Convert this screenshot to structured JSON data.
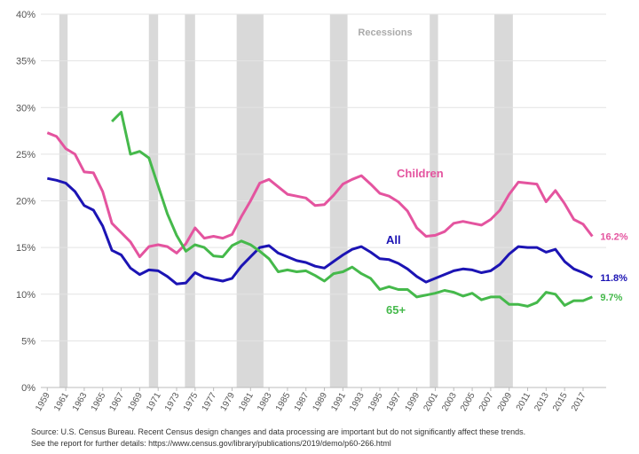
{
  "chart_data": {
    "type": "line",
    "x": [
      1959,
      1960,
      1961,
      1962,
      1963,
      1964,
      1965,
      1966,
      1967,
      1968,
      1969,
      1970,
      1971,
      1972,
      1973,
      1974,
      1975,
      1976,
      1977,
      1978,
      1979,
      1980,
      1981,
      1982,
      1983,
      1984,
      1985,
      1986,
      1987,
      1988,
      1989,
      1990,
      1991,
      1992,
      1993,
      1994,
      1995,
      1996,
      1997,
      1998,
      1999,
      2000,
      2001,
      2002,
      2003,
      2004,
      2005,
      2006,
      2007,
      2008,
      2009,
      2010,
      2011,
      2012,
      2013,
      2014,
      2015,
      2016,
      2017,
      2018
    ],
    "series": [
      {
        "name": "Children",
        "color": "#e4549f",
        "values": [
          27.3,
          26.9,
          25.6,
          25.0,
          23.1,
          23.0,
          21.0,
          17.6,
          16.6,
          15.6,
          14.0,
          15.1,
          15.3,
          15.1,
          14.4,
          15.4,
          17.1,
          16.0,
          16.2,
          16.0,
          16.4,
          18.3,
          20.0,
          21.9,
          22.3,
          21.5,
          20.7,
          20.5,
          20.3,
          19.5,
          19.6,
          20.6,
          21.8,
          22.3,
          22.7,
          21.8,
          20.8,
          20.5,
          19.9,
          18.9,
          17.1,
          16.2,
          16.3,
          16.7,
          17.6,
          17.8,
          17.6,
          17.4,
          18.0,
          19.0,
          20.7,
          22.0,
          21.9,
          21.8,
          19.9,
          21.1,
          19.7,
          18.0,
          17.5,
          16.2
        ],
        "value_labels": [
          null,
          null,
          null,
          null,
          null,
          null,
          null,
          null,
          null,
          null,
          null,
          null,
          null,
          null,
          null,
          null,
          null,
          null,
          null,
          null,
          null,
          null,
          null,
          null,
          null,
          null,
          null,
          null,
          null,
          null,
          null,
          null,
          null,
          null,
          null,
          null,
          null,
          null,
          null,
          null,
          null,
          null,
          null,
          null,
          null,
          null,
          null,
          null,
          null,
          null,
          null,
          null,
          null,
          null,
          null,
          null,
          null,
          null,
          null,
          "16.2%"
        ]
      },
      {
        "name": "All",
        "color": "#1c14b4",
        "values": [
          22.4,
          22.2,
          21.9,
          21.0,
          19.5,
          19.0,
          17.3,
          14.7,
          14.2,
          12.8,
          12.1,
          12.6,
          12.5,
          11.9,
          11.1,
          11.2,
          12.3,
          11.8,
          11.6,
          11.4,
          11.7,
          13.0,
          14.0,
          15.0,
          15.2,
          14.4,
          14.0,
          13.6,
          13.4,
          13.0,
          12.8,
          13.5,
          14.2,
          14.8,
          15.1,
          14.5,
          13.8,
          13.7,
          13.3,
          12.7,
          11.9,
          11.3,
          11.7,
          12.1,
          12.5,
          12.7,
          12.6,
          12.3,
          12.5,
          13.2,
          14.3,
          15.1,
          15.0,
          15.0,
          14.5,
          14.8,
          13.5,
          12.7,
          12.3,
          11.8
        ],
        "value_labels": [
          null,
          null,
          null,
          null,
          null,
          null,
          null,
          null,
          null,
          null,
          null,
          null,
          null,
          null,
          null,
          null,
          null,
          null,
          null,
          null,
          null,
          null,
          null,
          null,
          null,
          null,
          null,
          null,
          null,
          null,
          null,
          null,
          null,
          null,
          null,
          null,
          null,
          null,
          null,
          null,
          null,
          null,
          null,
          null,
          null,
          null,
          null,
          null,
          null,
          null,
          null,
          null,
          null,
          null,
          null,
          null,
          null,
          null,
          null,
          "11.8%"
        ]
      },
      {
        "name": "65+",
        "color": "#45b94b",
        "values": [
          null,
          null,
          null,
          null,
          null,
          null,
          null,
          28.5,
          29.5,
          25.0,
          25.3,
          24.6,
          21.6,
          18.6,
          16.3,
          14.6,
          15.3,
          15.0,
          14.1,
          14.0,
          15.2,
          15.7,
          15.3,
          14.6,
          13.8,
          12.4,
          12.6,
          12.4,
          12.5,
          12.0,
          11.4,
          12.2,
          12.4,
          12.9,
          12.2,
          11.7,
          10.5,
          10.8,
          10.5,
          10.5,
          9.7,
          9.9,
          10.1,
          10.4,
          10.2,
          9.8,
          10.1,
          9.4,
          9.7,
          9.7,
          8.9,
          8.9,
          8.7,
          9.1,
          10.2,
          10.0,
          8.8,
          9.3,
          9.3,
          9.7
        ],
        "value_labels": [
          null,
          null,
          null,
          null,
          null,
          null,
          null,
          null,
          null,
          null,
          null,
          null,
          null,
          null,
          null,
          null,
          null,
          null,
          null,
          null,
          null,
          null,
          null,
          null,
          null,
          null,
          null,
          null,
          null,
          null,
          null,
          null,
          null,
          null,
          null,
          null,
          null,
          null,
          null,
          null,
          null,
          null,
          null,
          null,
          null,
          null,
          null,
          null,
          null,
          null,
          null,
          null,
          null,
          null,
          null,
          null,
          null,
          null,
          null,
          "9.7%"
        ]
      }
    ],
    "recessions_label": "Recessions",
    "recessions": [
      [
        1960.3,
        1961.2
      ],
      [
        1970.0,
        1971.0
      ],
      [
        1973.9,
        1975.0
      ],
      [
        1979.5,
        1982.4
      ],
      [
        1989.6,
        1991.5
      ],
      [
        2000.4,
        2001.3
      ],
      [
        2007.4,
        2009.4
      ]
    ],
    "xlim": [
      1958.3,
      2019.5
    ],
    "xticks": [
      1959,
      1961,
      1963,
      1965,
      1967,
      1969,
      1971,
      1973,
      1975,
      1977,
      1979,
      1981,
      1983,
      1985,
      1987,
      1989,
      1991,
      1993,
      1995,
      1997,
      1999,
      2001,
      2003,
      2005,
      2007,
      2009,
      2011,
      2013,
      2015,
      2017
    ],
    "ylim": [
      0,
      40
    ],
    "yticks": [
      {
        "value": 0,
        "label": "0%"
      },
      {
        "value": 5,
        "label": "5%"
      },
      {
        "value": 10,
        "label": "10%"
      },
      {
        "value": 15,
        "label": "15%"
      },
      {
        "value": 20,
        "label": "20%"
      },
      {
        "value": 25,
        "label": "25%"
      },
      {
        "value": 30,
        "label": "30%"
      },
      {
        "value": 35,
        "label": "35%"
      },
      {
        "value": 40,
        "label": "40%"
      }
    ],
    "grid": true,
    "notes": [
      "Source: U.S. Census Bureau. Recent Census design changes and data processing are important but do not significantly affect these trends.",
      "See the report for further details: https://www.census.gov/library/publications/2019/demo/p60-266.html"
    ]
  }
}
